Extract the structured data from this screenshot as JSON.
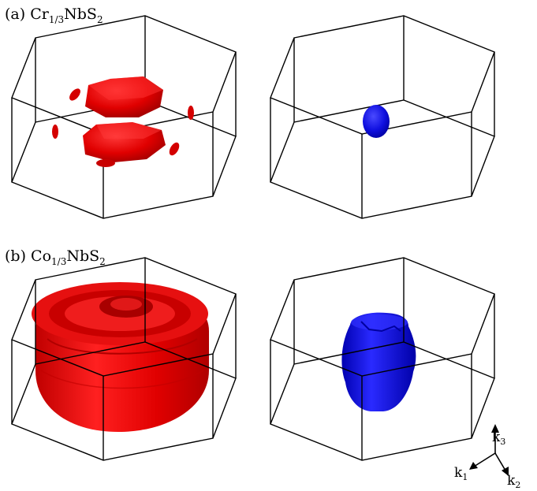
{
  "panels": [
    {
      "prefix": "(a) ",
      "element": "Cr",
      "fraction": "1/3",
      "rest": "NbS",
      "sub2": "2",
      "colors": [
        "#e00000",
        "#1010e0"
      ]
    },
    {
      "prefix": "(b) ",
      "element": "Co",
      "fraction": "1/3",
      "rest": "NbS",
      "sub2": "2",
      "colors": [
        "#e00000",
        "#1010e0"
      ]
    }
  ],
  "axes": {
    "k3": {
      "base": "k",
      "sub": "3"
    },
    "k1": {
      "base": "k",
      "sub": "1"
    },
    "k2": {
      "base": "k",
      "sub": "2"
    }
  }
}
